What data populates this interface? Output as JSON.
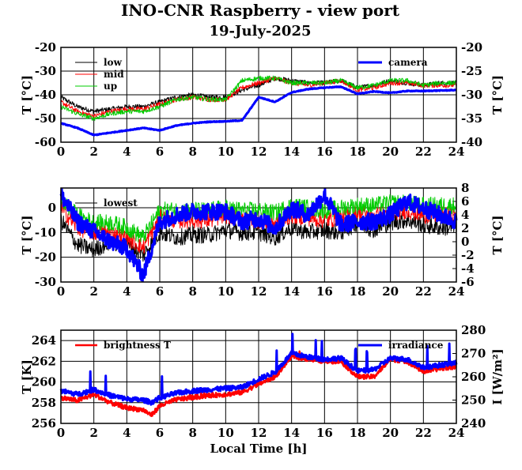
{
  "title": "INO-CNR Raspberry - view port",
  "subtitle": "19-July-2025",
  "colors": {
    "black": "#000000",
    "red": "#ff0000",
    "green": "#00cc00",
    "blue": "#0000ff"
  },
  "chart_data": [
    {
      "type": "line",
      "panel": "top",
      "ylabel": "T [°C]",
      "y2label": "T [°C]",
      "xlim": [
        0,
        24
      ],
      "ylim": [
        -60,
        -20
      ],
      "y2lim": [
        -40,
        -20
      ],
      "xticks": [
        "0",
        "2",
        "4",
        "6",
        "8",
        "10",
        "12",
        "14",
        "16",
        "18",
        "20",
        "22",
        "24"
      ],
      "yticks": [
        "-60",
        "-50",
        "-40",
        "-30",
        "-20"
      ],
      "y2ticks": [
        "-40",
        "-35",
        "-30",
        "-25",
        "-20"
      ],
      "legend_left": [
        "low",
        "mid",
        "up"
      ],
      "legend_right": [
        "camera"
      ],
      "series": [
        {
          "name": "low",
          "color": "#000000",
          "axis": "left",
          "x": [
            0,
            1,
            2,
            3,
            4,
            5,
            6,
            7,
            8,
            9,
            10,
            11,
            12,
            13,
            14,
            15,
            16,
            17,
            18,
            19,
            20,
            21,
            22,
            23,
            24
          ],
          "y": [
            -41,
            -45,
            -47,
            -46,
            -45,
            -45,
            -43,
            -41,
            -40,
            -41,
            -41,
            -38,
            -36,
            -33,
            -34,
            -35,
            -35,
            -34,
            -37,
            -36,
            -34,
            -35,
            -36,
            -35,
            -35
          ]
        },
        {
          "name": "mid",
          "color": "#ff0000",
          "axis": "left",
          "x": [
            0,
            1,
            2,
            3,
            4,
            5,
            6,
            7,
            8,
            9,
            10,
            11,
            12,
            13,
            14,
            15,
            16,
            17,
            18,
            19,
            20,
            21,
            22,
            23,
            24
          ],
          "y": [
            -43,
            -47,
            -49,
            -47,
            -46,
            -46,
            -44,
            -42,
            -41,
            -42,
            -42,
            -37,
            -35,
            -33,
            -35,
            -36,
            -35,
            -34,
            -38,
            -37,
            -35,
            -35,
            -36,
            -36,
            -36
          ]
        },
        {
          "name": "up",
          "color": "#00cc00",
          "axis": "left",
          "x": [
            0,
            1,
            2,
            3,
            4,
            5,
            6,
            7,
            8,
            9,
            10,
            11,
            12,
            13,
            14,
            15,
            16,
            17,
            18,
            19,
            20,
            21,
            22,
            23,
            24
          ],
          "y": [
            -45,
            -48,
            -50,
            -48,
            -47,
            -47,
            -45,
            -42,
            -41,
            -42,
            -42,
            -34,
            -33,
            -33,
            -35,
            -35,
            -35,
            -34,
            -37,
            -36,
            -34,
            -34,
            -36,
            -35,
            -35
          ]
        },
        {
          "name": "camera",
          "color": "#0000ff",
          "axis": "right",
          "x": [
            0,
            1,
            2,
            3,
            4,
            5,
            6,
            7,
            8,
            9,
            10,
            11,
            12,
            13,
            14,
            15,
            16,
            17,
            18,
            19,
            20,
            21,
            22,
            23,
            24
          ],
          "y": [
            -36,
            -37,
            -38.5,
            -38,
            -37.5,
            -37,
            -37.5,
            -36.5,
            -36,
            -35.7,
            -35.6,
            -35.4,
            -30.5,
            -31.5,
            -29.5,
            -28.8,
            -28.5,
            -28.3,
            -29.8,
            -29.3,
            -29.6,
            -29.2,
            -29.2,
            -29.1,
            -29
          ]
        }
      ]
    },
    {
      "type": "line",
      "panel": "middle",
      "ylabel": "T [°C]",
      "y2label": "T [°C]",
      "xlim": [
        0,
        24
      ],
      "ylim": [
        -30,
        8
      ],
      "y2lim": [
        -6,
        8
      ],
      "xticks": [
        "0",
        "2",
        "4",
        "6",
        "8",
        "10",
        "12",
        "14",
        "16",
        "18",
        "20",
        "22",
        "24"
      ],
      "yticks": [
        "-30",
        "-20",
        "-10",
        "0"
      ],
      "y2ticks": [
        "-6",
        "-4",
        "-2",
        "0",
        "2",
        "4",
        "6",
        "8"
      ],
      "legend_left": [
        "lowest"
      ],
      "series": [
        {
          "name": "lowest",
          "color": "#000000",
          "axis": "left",
          "x": [
            0,
            1,
            2,
            3,
            4,
            5,
            6,
            7,
            8,
            9,
            10,
            11,
            12,
            13,
            14,
            15,
            16,
            17,
            18,
            19,
            20,
            21,
            22,
            23,
            24
          ],
          "y": [
            -5,
            -15,
            -17,
            -14,
            -15,
            -19,
            -10,
            -12,
            -11,
            -11,
            -9,
            -10,
            -10,
            -12,
            -8,
            -10,
            -9,
            -10,
            -6,
            -9,
            -6,
            -5,
            -7,
            -8,
            -8
          ]
        },
        {
          "color": "#ff0000",
          "axis": "left",
          "x": [
            0,
            1,
            2,
            3,
            4,
            5,
            6,
            7,
            8,
            9,
            10,
            11,
            12,
            13,
            14,
            15,
            16,
            17,
            18,
            19,
            20,
            21,
            22,
            23,
            24
          ],
          "y": [
            0,
            -8,
            -10,
            -10,
            -12,
            -16,
            -4,
            -5,
            -5,
            -5,
            -3,
            -4,
            -5,
            -6,
            -3,
            -4,
            -5,
            -4,
            -2,
            -3,
            -2,
            -1,
            -3,
            -3,
            -3
          ]
        },
        {
          "color": "#00cc00",
          "axis": "left",
          "x": [
            0,
            1,
            2,
            3,
            4,
            5,
            6,
            7,
            8,
            9,
            10,
            11,
            12,
            13,
            14,
            15,
            16,
            17,
            18,
            19,
            20,
            21,
            22,
            23,
            24
          ],
          "y": [
            3,
            -3,
            -6,
            -6,
            -8,
            -12,
            -1,
            -1,
            -1,
            -1,
            0,
            -1,
            -1,
            -2,
            1,
            0,
            -1,
            0,
            1,
            1,
            2,
            2,
            1,
            1,
            1
          ]
        },
        {
          "color": "#0000ff",
          "axis": "right",
          "x": [
            0,
            1,
            2,
            3,
            4,
            5,
            6,
            7,
            8,
            9,
            10,
            11,
            12,
            13,
            14,
            15,
            16,
            17,
            18,
            19,
            20,
            21,
            22,
            23,
            24
          ],
          "y": [
            7,
            3,
            1.5,
            0,
            -1,
            -5,
            3,
            4,
            4.5,
            4.5,
            4.5,
            3,
            3.5,
            2,
            5,
            4,
            7,
            2.5,
            3,
            3,
            4,
            6,
            5,
            4,
            3
          ]
        }
      ]
    },
    {
      "type": "line",
      "panel": "bottom",
      "xlabel": "Local Time [h]",
      "ylabel": "T [K]",
      "y2label": "I [W/m²]",
      "xlim": [
        0,
        24
      ],
      "ylim": [
        256,
        265
      ],
      "y2lim": [
        240,
        280
      ],
      "xticks": [
        "0",
        "2",
        "4",
        "6",
        "8",
        "10",
        "12",
        "14",
        "16",
        "18",
        "20",
        "22",
        "24"
      ],
      "yticks": [
        "256",
        "258",
        "260",
        "262",
        "264"
      ],
      "y2ticks": [
        "240",
        "250",
        "260",
        "270",
        "280"
      ],
      "legend_left": [
        "brightness T"
      ],
      "legend_right": [
        "irradiance"
      ],
      "series": [
        {
          "name": "brightness T",
          "color": "#ff0000",
          "axis": "left",
          "x": [
            0,
            1,
            2,
            3,
            4,
            5,
            5.5,
            6,
            7,
            8,
            9,
            10,
            11,
            12,
            13,
            14,
            15,
            16,
            17,
            18,
            19,
            20,
            21,
            22,
            23,
            24
          ],
          "y": [
            258.5,
            258.2,
            258.8,
            258,
            257.5,
            257.3,
            256.8,
            257.7,
            258.3,
            258.5,
            258.7,
            258.8,
            259,
            259.8,
            260.5,
            262.5,
            262.2,
            262,
            262,
            260.5,
            260.5,
            262.2,
            262,
            261,
            261.3,
            261.5
          ]
        },
        {
          "name": "irradiance",
          "color": "#0000ff",
          "axis": "right",
          "x": [
            0,
            1,
            2,
            3,
            4,
            5,
            5.5,
            6,
            7,
            8,
            9,
            10,
            11,
            12,
            13,
            14,
            15,
            16,
            17,
            18,
            19,
            20,
            21,
            22,
            23,
            24
          ],
          "y": [
            254,
            252.5,
            254.5,
            252,
            250.5,
            250,
            249,
            251,
            253,
            254,
            254.5,
            255,
            255.5,
            259,
            262,
            270,
            268.5,
            267.5,
            268,
            262.5,
            263,
            268,
            267.5,
            264,
            265,
            266
          ]
        }
      ]
    }
  ]
}
